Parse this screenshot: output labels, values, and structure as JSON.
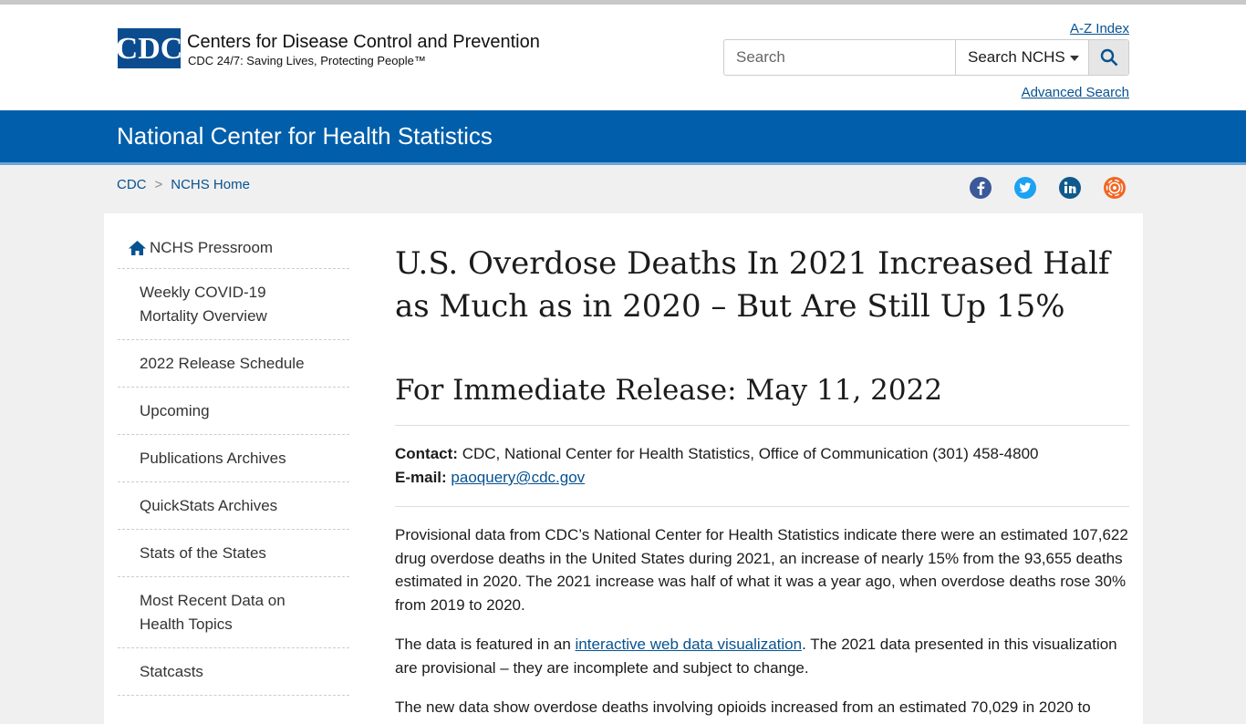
{
  "header": {
    "logo": "CDC",
    "org_name": "Centers for Disease Control and Prevention",
    "tagline": "CDC 24/7: Saving Lives, Protecting People™",
    "az_index": "A-Z Index",
    "search_placeholder": "Search",
    "search_scope": "Search NCHS",
    "advanced_search": "Advanced Search"
  },
  "banner": {
    "title": "National Center for Health Statistics"
  },
  "breadcrumbs": {
    "items": [
      "CDC",
      "NCHS Home"
    ],
    "separator": ">"
  },
  "sidebar": {
    "heading": "NCHS Pressroom",
    "items": [
      "Weekly COVID-19 Mortality Overview",
      "2022 Release Schedule",
      "Upcoming",
      "Publications Archives",
      "QuickStats Archives",
      "Stats of the States",
      "Most Recent Data on Health Topics",
      "Statcasts"
    ]
  },
  "article": {
    "title": "U.S. Overdose Deaths In 2021 Increased Half as Much as in 2020 – But Are Still Up 15%",
    "subtitle": "For Immediate Release: May 11, 2022",
    "contact": {
      "label": "Contact:",
      "text": "CDC, National Center for Health Statistics, Office of Communication (301) 458-4800"
    },
    "email": {
      "label": "E-mail:",
      "address": "paoquery@cdc.gov"
    },
    "paragraphs": [
      {
        "text": "Provisional data from CDC’s National Center for Health Statistics indicate there were an estimated 107,622 drug overdose deaths in the United States during 2021, an increase of nearly 15% from the 93,655 deaths estimated in 2020. The 2021 increase was half of what it was a year ago, when overdose deaths rose 30% from 2019 to 2020."
      },
      {
        "before": "The data is featured in an ",
        "link": "interactive web data visualization",
        "after": ". The 2021 data presented in this visualization are provisional – they are incomplete and subject to change."
      },
      {
        "text": "The new data show overdose deaths involving opioids increased from an estimated 70,029 in 2020 to"
      }
    ]
  }
}
